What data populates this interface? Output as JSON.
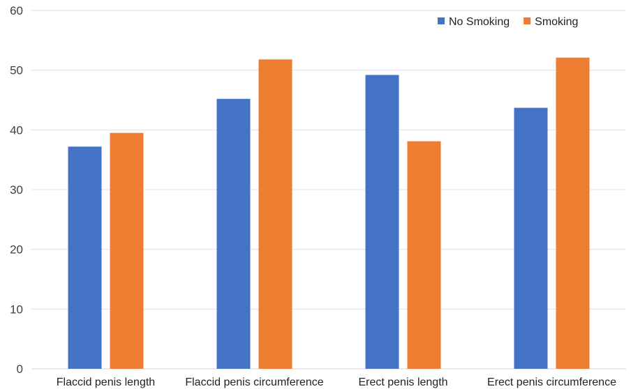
{
  "chart_data": {
    "type": "bar",
    "categories": [
      "Flaccid penis length",
      "Flaccid penis circumference",
      "Erect penis length",
      "Erect penis circumference"
    ],
    "series": [
      {
        "name": "No Smoking",
        "color": "#4472C4",
        "values": [
          37.2,
          45.2,
          49.2,
          43.7
        ]
      },
      {
        "name": "Smoking",
        "color": "#ED7D31",
        "values": [
          39.5,
          51.8,
          38.1,
          52.1
        ]
      }
    ],
    "yticks": [
      "0",
      "10",
      "20",
      "30",
      "40",
      "50",
      "60"
    ],
    "ylim": [
      0,
      60
    ],
    "grid": true,
    "legend_position": "top-right",
    "title": "",
    "xlabel": "",
    "ylabel": ""
  }
}
